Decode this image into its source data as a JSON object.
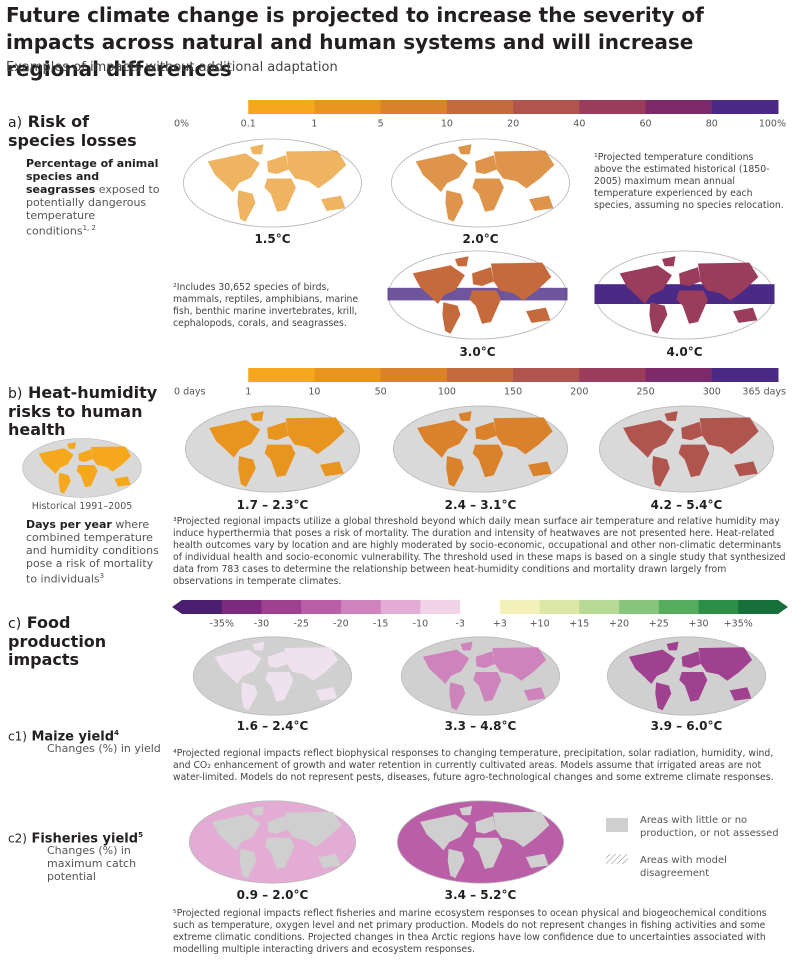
{
  "header": {
    "title": "Future climate change is projected to increase the severity of impacts across natural and human systems and will increase regional differences",
    "subtitle": "Examples of impacts without additional adaptation"
  },
  "species": {
    "letter": "a)",
    "title": "Risk of species losses",
    "description_bold": "Percentage of animal species and seagrasses",
    "description": "exposed to potentially dangerous temperature conditions",
    "refs": "1, 2",
    "scale": {
      "labels": [
        "0%",
        "0.1",
        "1",
        "5",
        "10",
        "20",
        "40",
        "60",
        "80",
        "100%"
      ],
      "colors": [
        "#ffffff",
        "#f5a81c",
        "#e8951f",
        "#d9822b",
        "#c56a3c",
        "#b0554e",
        "#9a3d5c",
        "#7d2a6b",
        "#4b2a86"
      ]
    },
    "maps": [
      "1.5°C",
      "2.0°C",
      "3.0°C",
      "4.0°C"
    ],
    "footnote1": "¹Projected temperature conditions above the estimated historical (1850-2005) maximum mean annual temperature experienced by each species, assuming no species relocation.",
    "footnote2": "²Includes 30,652 species of birds, mammals, reptiles, amphibians, marine fish, benthic marine invertebrates, krill, cephalopods, corals, and seagrasses."
  },
  "heat": {
    "letter": "b)",
    "title": "Heat-humidity risks to human health",
    "historical": "Historical 1991–2005",
    "description_bold": "Days per year",
    "description": "where combined temperature and humidity conditions pose a risk of mortality to individuals",
    "refs": "3",
    "scale": {
      "labels": [
        "0 days",
        "1",
        "10",
        "50",
        "100",
        "150",
        "200",
        "250",
        "300",
        "365 days"
      ],
      "colors": [
        "#ffffff",
        "#f5a81c",
        "#e8951f",
        "#d9822b",
        "#c56a3c",
        "#b0554e",
        "#9a3d5c",
        "#7d2a6b",
        "#4b2a86"
      ]
    },
    "maps": [
      "1.7 – 2.3°C",
      "2.4 – 3.1°C",
      "4.2 – 5.4°C"
    ],
    "footnote": "³Projected regional impacts utilize a global threshold beyond which daily mean surface air temperature and relative humidity may induce hyperthermia that poses a risk of mortality. The duration and intensity of heatwaves are not presented here. Heat-related health outcomes vary by location and are highly moderated by socio-economic, occupational and other non-climatic determinants of individual health and socio-economic vulnerability. The threshold used in these maps is based on a single study that synthesized data from 783 cases to determine the relationship between heat-humidity conditions and mortality drawn largely from observations in temperate climates."
  },
  "food": {
    "letter": "c)",
    "title": "Food production impacts",
    "scale": {
      "labels": [
        "-35%",
        "-30",
        "-25",
        "-20",
        "-15",
        "-10",
        "-3",
        "+3",
        "+10",
        "+15",
        "+20",
        "+25",
        "+30",
        "+35%"
      ],
      "colors": [
        "#4b1f6f",
        "#7b2a7d",
        "#a0418f",
        "#bb5ea8",
        "#cf83bd",
        "#e3acd4",
        "#f2d3e8",
        "#ffffff",
        "#f4f1bb",
        "#dbe8a6",
        "#b6da95",
        "#88c57c",
        "#55ac5d",
        "#2d8f46",
        "#17703a"
      ]
    },
    "maize": {
      "letter": "c1)",
      "title": "Maize yield",
      "refs": "4",
      "description": "Changes (%) in yield",
      "maps": [
        "1.6 – 2.4°C",
        "3.3 – 4.8°C",
        "3.9 – 6.0°C"
      ],
      "footnote": "⁴Projected regional impacts reflect biophysical responses to changing temperature, precipitation, solar radiation, humidity, wind, and CO₂ enhancement of growth and water retention in currently cultivated areas. Models assume that irrigated areas are not water-limited. Models do not represent pests, diseases, future agro-technological changes and some extreme climate responses."
    },
    "fisheries": {
      "letter": "c2)",
      "title": "Fisheries yield",
      "refs": "5",
      "description": "Changes (%) in maximum catch potential",
      "maps": [
        "0.9 – 2.0°C",
        "3.4 – 5.2°C"
      ],
      "legend": [
        "Areas with little or no production, or not assessed",
        "Areas with model disagreement"
      ],
      "footnote": "⁵Projected regional impacts reflect fisheries and marine ecosystem responses to ocean physical and biogeochemical conditions such as temperature, oxygen level and net primary production. Models do not represent changes in fishing activities and some extreme climatic conditions. Projected changes in thea Arctic regions have low confidence due to uncertainties associated with modelling multiple interacting drivers and ecosystem responses."
    }
  }
}
